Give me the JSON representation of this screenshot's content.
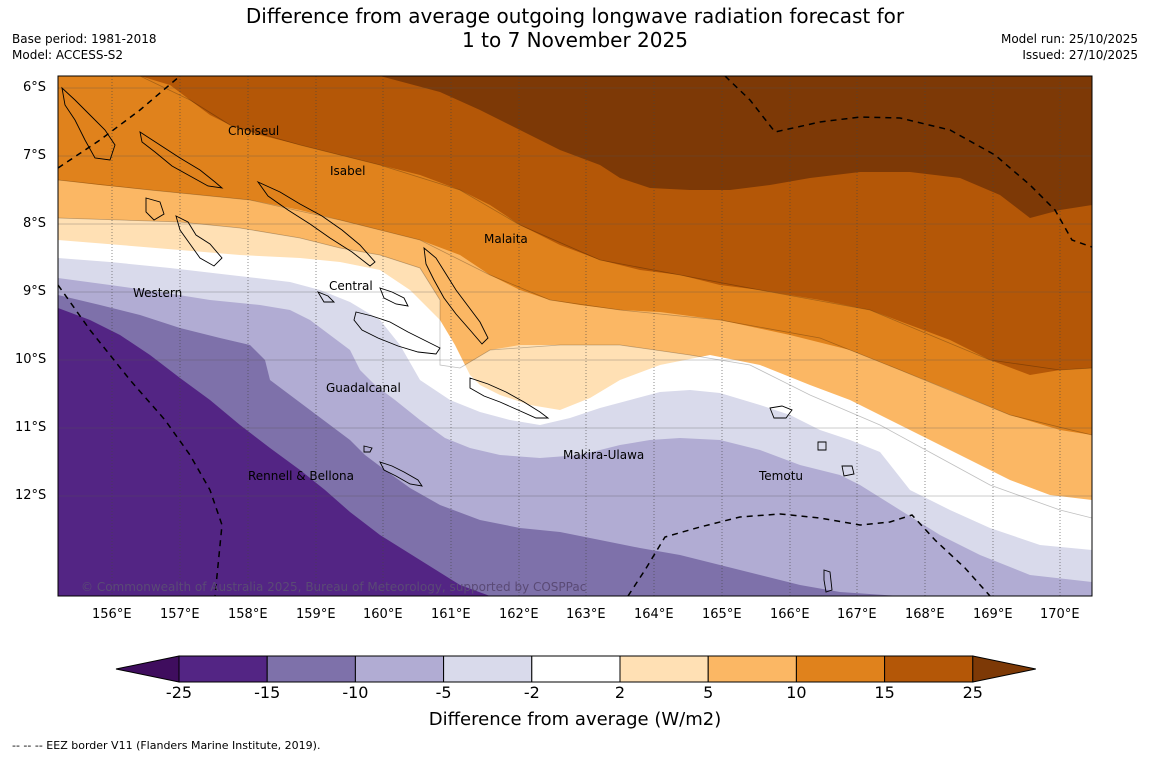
{
  "header": {
    "title_line1": "Difference from average outgoing longwave radiation forecast for",
    "title_line2": "1 to 7 November 2025",
    "base_period": "Base period: 1981-2018",
    "model": "Model: ACCESS-S2",
    "model_run": "Model run: 25/10/2025",
    "issued": "Issued: 27/10/2025"
  },
  "map": {
    "lat_labels": [
      "6°S",
      "7°S",
      "8°S",
      "9°S",
      "10°S",
      "11°S",
      "12°S"
    ],
    "lon_labels": [
      "156°E",
      "157°E",
      "158°E",
      "159°E",
      "160°E",
      "161°E",
      "162°E",
      "163°E",
      "164°E",
      "165°E",
      "166°E",
      "167°E",
      "168°E",
      "169°E",
      "170°E"
    ],
    "regions": [
      {
        "name": "Choiseul"
      },
      {
        "name": "Isabel"
      },
      {
        "name": "Malaita"
      },
      {
        "name": "Western"
      },
      {
        "name": "Central"
      },
      {
        "name": "Guadalcanal"
      },
      {
        "name": "Makira-Ulawa"
      },
      {
        "name": "Temotu"
      },
      {
        "name": "Rennell & Bellona"
      }
    ],
    "copyright": "© Commonwealth of Australia 2025, Bureau of Meteorology, supported by COSPPac"
  },
  "colorbar": {
    "colors": [
      "#3f0d5e",
      "#532584",
      "#7e71aa",
      "#b1acd3",
      "#d9daeb",
      "#ffffff",
      "#ffe0b4",
      "#fbb764",
      "#e0821c",
      "#b45707",
      "#7d3906"
    ],
    "ticks": [
      "-25",
      "-15",
      "-10",
      "-5",
      "-2",
      "2",
      "5",
      "10",
      "15",
      "25"
    ],
    "label": "Difference from average (W/m2)"
  },
  "footnote": "--  --  -- EEZ border V11 (Flanders Marine Institute, 2019)."
}
